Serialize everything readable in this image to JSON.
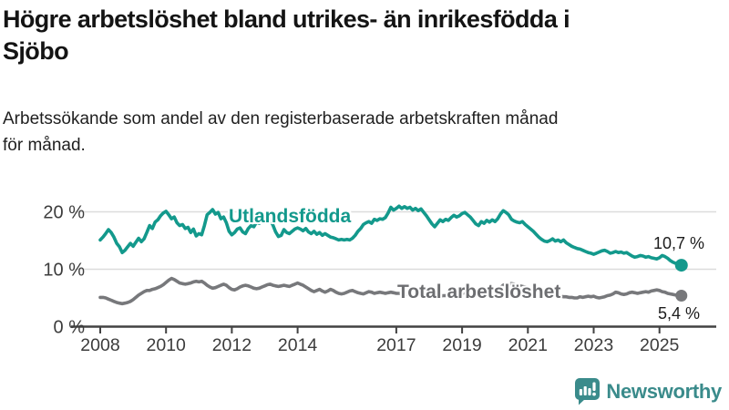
{
  "header": {
    "title_lines": [
      "Högre arbetslöshet bland utrikes- än inrikesfödda i",
      "Sjöbo"
    ],
    "subtitle_lines": [
      "Arbetssökande som andel av den registerbaserade arbetskraften månad",
      "för månad."
    ]
  },
  "footer": {
    "brand": "Newsworthy"
  },
  "colors": {
    "teal": "#13998c",
    "gray": "#77787b",
    "gray_label": "#6d6e71",
    "axis": "#424242",
    "grid": "#dcdcdc",
    "tick_text": "#3c3c3c",
    "brand": "#3a8b8b"
  },
  "chart_data": {
    "type": "line",
    "unit": "%",
    "grid": true,
    "legend_position": "inline-labels",
    "x_axis": {
      "tick_years": [
        2008,
        2010,
        2012,
        2014,
        2017,
        2019,
        2021,
        2023,
        2025
      ],
      "range": [
        2008.0,
        2025.67
      ]
    },
    "y_axis": {
      "ticks": [
        {
          "value": 0,
          "label": "0 %"
        },
        {
          "value": 10,
          "label": "10 %"
        },
        {
          "value": 20,
          "label": "20 %"
        }
      ],
      "range": [
        0,
        21.5
      ]
    },
    "series": [
      {
        "name": "Utlandsfödda",
        "color": "#13998c",
        "end_label": "10,7 %",
        "end_value": 10.7,
        "start_year": 2008,
        "months_per_point": 1,
        "values": [
          15.1,
          15.6,
          16.2,
          16.9,
          16.4,
          15.6,
          14.5,
          13.9,
          12.9,
          13.3,
          13.9,
          14.5,
          14.0,
          14.7,
          15.4,
          14.8,
          15.3,
          16.4,
          17.6,
          17.1,
          18.2,
          18.6,
          19.3,
          19.8,
          20.1,
          19.5,
          18.8,
          19.1,
          18.1,
          17.6,
          17.8,
          17.1,
          17.3,
          16.4,
          17.0,
          15.8,
          16.2,
          16.0,
          17.6,
          19.5,
          19.9,
          20.4,
          19.6,
          19.9,
          18.8,
          19.1,
          18.1,
          16.6,
          16.0,
          16.4,
          17.0,
          17.2,
          16.5,
          16.2,
          17.1,
          17.6,
          17.4,
          18.2,
          18.0,
          18.4,
          18.7,
          19.2,
          18.5,
          17.7,
          16.5,
          15.7,
          15.9,
          16.9,
          16.4,
          16.2,
          16.6,
          17.0,
          17.2,
          17.0,
          16.7,
          17.1,
          16.5,
          16.2,
          16.6,
          16.1,
          16.4,
          15.9,
          16.2,
          15.9,
          15.6,
          15.5,
          15.3,
          15.1,
          15.2,
          15.1,
          15.2,
          15.1,
          15.4,
          15.9,
          16.6,
          17.1,
          17.8,
          18.1,
          18.3,
          18.0,
          18.7,
          18.5,
          18.8,
          18.7,
          19.0,
          19.8,
          20.8,
          20.3,
          20.6,
          21.0,
          20.6,
          20.9,
          20.6,
          20.8,
          20.3,
          20.6,
          20.2,
          20.5,
          19.9,
          19.3,
          18.6,
          17.9,
          17.4,
          18.0,
          18.6,
          18.3,
          18.7,
          18.5,
          19.0,
          19.4,
          19.1,
          19.3,
          19.7,
          19.9,
          19.5,
          19.1,
          18.5,
          17.9,
          17.6,
          18.3,
          18.0,
          18.5,
          18.2,
          18.6,
          18.3,
          18.8,
          19.6,
          20.2,
          19.9,
          19.5,
          18.7,
          18.4,
          18.2,
          18.1,
          18.3,
          17.8,
          17.4,
          17.0,
          16.6,
          16.1,
          15.6,
          15.2,
          14.9,
          14.8,
          15.0,
          15.3,
          14.9,
          15.1,
          14.8,
          15.1,
          14.6,
          14.3,
          14.0,
          13.8,
          13.6,
          13.5,
          13.3,
          13.1,
          12.9,
          12.8,
          12.6,
          12.8,
          13.0,
          13.2,
          13.3,
          13.1,
          12.8,
          12.9,
          13.1,
          12.9,
          13.0,
          12.8,
          12.9,
          12.6,
          12.3,
          12.1,
          12.2,
          12.4,
          12.3,
          12.1,
          12.2,
          12.0,
          11.9,
          11.8,
          12.0,
          12.4,
          12.2,
          11.9,
          11.5,
          11.2,
          11.0,
          10.8,
          10.7
        ]
      },
      {
        "name": "Total arbetslöshet",
        "color": "#77787b",
        "end_label": "5,4 %",
        "end_value": 5.4,
        "start_year": 2008,
        "months_per_point": 1,
        "values": [
          5.1,
          5.1,
          5.0,
          4.8,
          4.6,
          4.4,
          4.2,
          4.1,
          4.0,
          4.1,
          4.2,
          4.4,
          4.7,
          5.1,
          5.5,
          5.8,
          6.1,
          6.3,
          6.3,
          6.5,
          6.6,
          6.8,
          7.0,
          7.3,
          7.7,
          8.1,
          8.4,
          8.2,
          7.9,
          7.6,
          7.5,
          7.4,
          7.5,
          7.6,
          7.8,
          7.9,
          7.8,
          7.9,
          7.6,
          7.2,
          6.9,
          6.7,
          6.8,
          7.0,
          7.2,
          7.4,
          7.2,
          6.8,
          6.5,
          6.4,
          6.6,
          6.9,
          7.1,
          7.2,
          7.1,
          6.9,
          6.7,
          6.6,
          6.7,
          6.9,
          7.1,
          7.3,
          7.4,
          7.2,
          7.1,
          7.0,
          7.1,
          7.2,
          7.1,
          7.0,
          7.2,
          7.4,
          7.6,
          7.4,
          7.2,
          6.9,
          6.6,
          6.3,
          6.1,
          6.3,
          6.5,
          6.2,
          6.0,
          6.2,
          6.5,
          6.3,
          6.0,
          5.8,
          5.7,
          5.8,
          6.0,
          6.2,
          6.3,
          6.1,
          5.9,
          5.8,
          5.7,
          5.9,
          6.1,
          6.0,
          5.8,
          5.9,
          6.0,
          5.9,
          5.8,
          5.9,
          6.0,
          5.9,
          5.8,
          5.8,
          5.7,
          5.6,
          5.6,
          5.5,
          5.5,
          5.6,
          5.6,
          5.7,
          5.7,
          5.6,
          5.6,
          5.5,
          5.4,
          5.3,
          5.3,
          5.4,
          5.4,
          5.5,
          5.6,
          5.6,
          5.7,
          5.7,
          5.8,
          5.9,
          5.8,
          5.7,
          5.6,
          5.6,
          5.7,
          5.8,
          5.9,
          6.0,
          6.1,
          6.1,
          6.2,
          6.5,
          6.8,
          7.2,
          7.4,
          7.5,
          7.5,
          7.4,
          7.2,
          7.1,
          7.0,
          6.9,
          6.8,
          6.6,
          6.5,
          6.3,
          6.2,
          6.0,
          5.9,
          5.8,
          5.7,
          5.6,
          5.5,
          5.4,
          5.3,
          5.2,
          5.2,
          5.1,
          5.1,
          5.0,
          5.0,
          5.2,
          5.1,
          5.2,
          5.3,
          5.2,
          5.3,
          5.1,
          5.0,
          5.1,
          5.2,
          5.4,
          5.5,
          5.7,
          6.0,
          5.9,
          5.7,
          5.6,
          5.7,
          5.9,
          6.0,
          5.9,
          5.8,
          5.9,
          6.0,
          6.1,
          6.0,
          6.2,
          6.3,
          6.4,
          6.3,
          6.1,
          6.0,
          5.8,
          5.7,
          5.6,
          5.5,
          5.4,
          5.4
        ]
      }
    ]
  }
}
